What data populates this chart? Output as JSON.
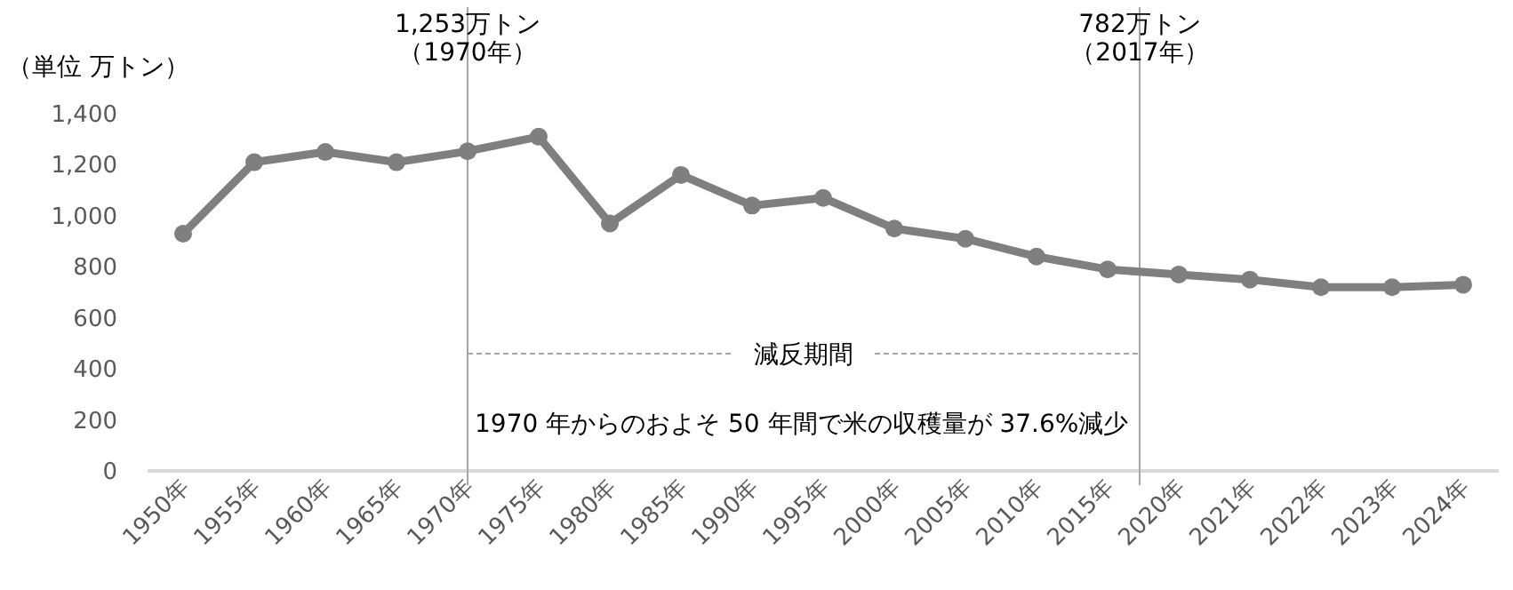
{
  "chart_data": {
    "type": "line",
    "ylabel": "（単位 万トン）",
    "categories": [
      "1950年",
      "1955年",
      "1960年",
      "1965年",
      "1970年",
      "1975年",
      "1980年",
      "1985年",
      "1990年",
      "1995年",
      "2000年",
      "2005年",
      "2010年",
      "2015年",
      "2020年",
      "2021年",
      "2022年",
      "2023年",
      "2024年"
    ],
    "series": [
      {
        "color": "#7f7f7f",
        "values": [
          930,
          1210,
          1250,
          1210,
          1253,
          1310,
          970,
          1160,
          1040,
          1070,
          950,
          910,
          840,
          790,
          770,
          750,
          720,
          720,
          730
        ]
      }
    ],
    "ylim": [
      0,
      1400
    ],
    "yticks": [
      0,
      200,
      400,
      600,
      800,
      {
        "value": 1000,
        "label": "1,000"
      },
      {
        "value": 1200,
        "label": "1,200"
      },
      {
        "value": 1400,
        "label": "1,400"
      }
    ],
    "ref_lines": [
      {
        "axis": "x",
        "value": "1970年",
        "label": "1,253万トン（1970年）",
        "color": "#a6a6a6"
      }
    ],
    "annotations": [
      {
        "text": "減反期間",
        "x": "1970年"
      },
      "1970 年からのおよそ 50 年間で米の収穫量が 37.6%減少",
      "782万トン（2017年）"
    ],
    "marker": "circle",
    "line_style": "solid",
    "grid": false
  }
}
